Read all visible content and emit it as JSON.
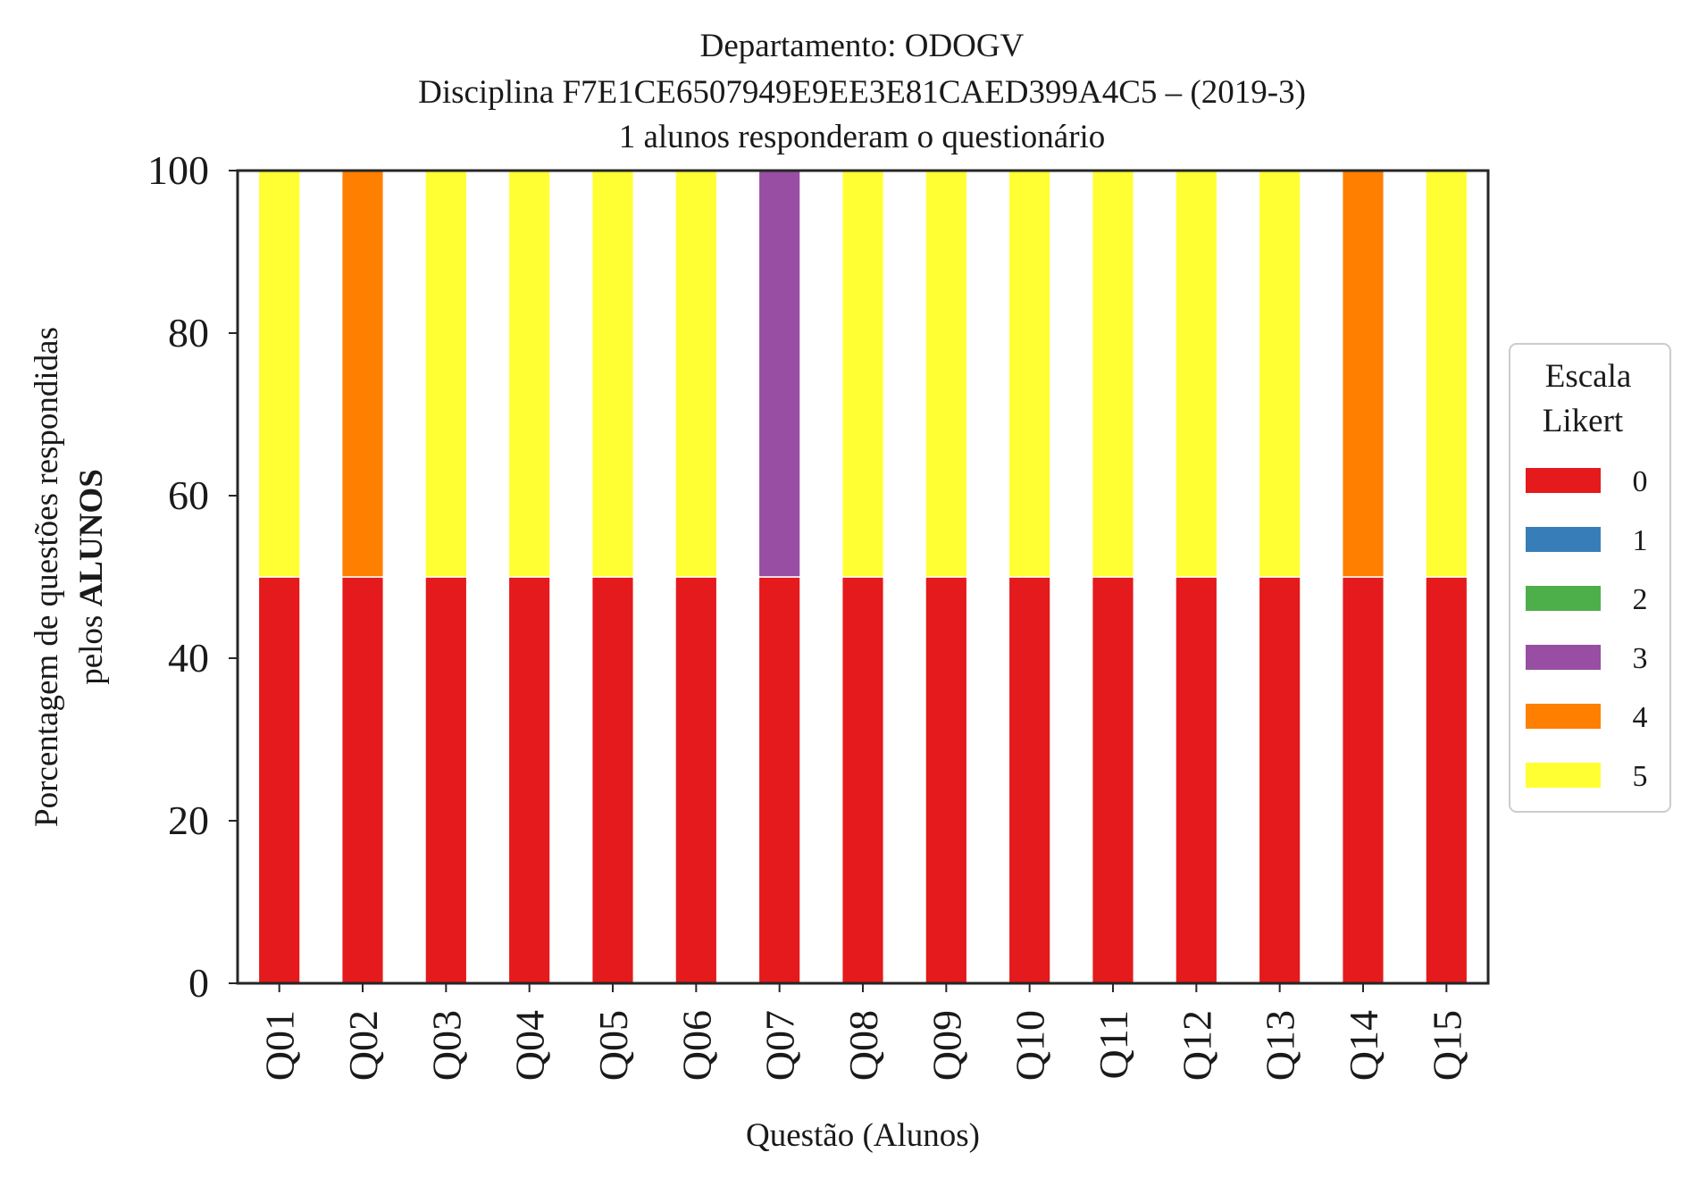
{
  "chart_data": {
    "type": "bar",
    "stacked": true,
    "title_lines": [
      "Departamento: ODOGV",
      "Disciplina F7E1CE6507949E9EE3E81CAED399A4C5 – (2019-3)",
      "1 alunos responderam o questionário"
    ],
    "xlabel": "Questão (Alunos)",
    "ylabel_line1": "Porcentagem de questões respondidas",
    "ylabel_line2_prefix": "pelos ",
    "ylabel_line2_bold": "ALUNOS",
    "ylim": [
      0,
      100
    ],
    "yticks": [
      "0",
      "20",
      "40",
      "60",
      "80",
      "100"
    ],
    "grid": false,
    "categories": [
      "Q01",
      "Q02",
      "Q03",
      "Q04",
      "Q05",
      "Q06",
      "Q07",
      "Q08",
      "Q09",
      "Q10",
      "Q11",
      "Q12",
      "Q13",
      "Q14",
      "Q15"
    ],
    "series": [
      {
        "name": "0",
        "color": "#e41a1c",
        "values": [
          50,
          50,
          50,
          50,
          50,
          50,
          50,
          50,
          50,
          50,
          50,
          50,
          50,
          50,
          50
        ]
      },
      {
        "name": "1",
        "color": "#377eb8",
        "values": [
          0,
          0,
          0,
          0,
          0,
          0,
          0,
          0,
          0,
          0,
          0,
          0,
          0,
          0,
          0
        ]
      },
      {
        "name": "2",
        "color": "#4daf4a",
        "values": [
          0,
          0,
          0,
          0,
          0,
          0,
          0,
          0,
          0,
          0,
          0,
          0,
          0,
          0,
          0
        ]
      },
      {
        "name": "3",
        "color": "#984ea3",
        "values": [
          0,
          0,
          0,
          0,
          0,
          0,
          50,
          0,
          0,
          0,
          0,
          0,
          0,
          0,
          0
        ]
      },
      {
        "name": "4",
        "color": "#ff7f00",
        "values": [
          0,
          50,
          0,
          0,
          0,
          0,
          0,
          0,
          0,
          0,
          0,
          0,
          0,
          50,
          0
        ]
      },
      {
        "name": "5",
        "color": "#ffff33",
        "values": [
          50,
          0,
          50,
          50,
          50,
          50,
          0,
          50,
          50,
          50,
          50,
          50,
          50,
          0,
          50
        ]
      }
    ],
    "legend": {
      "title_lines": [
        "Escala",
        "Likert"
      ],
      "placement": "center-right, outside axes"
    }
  }
}
